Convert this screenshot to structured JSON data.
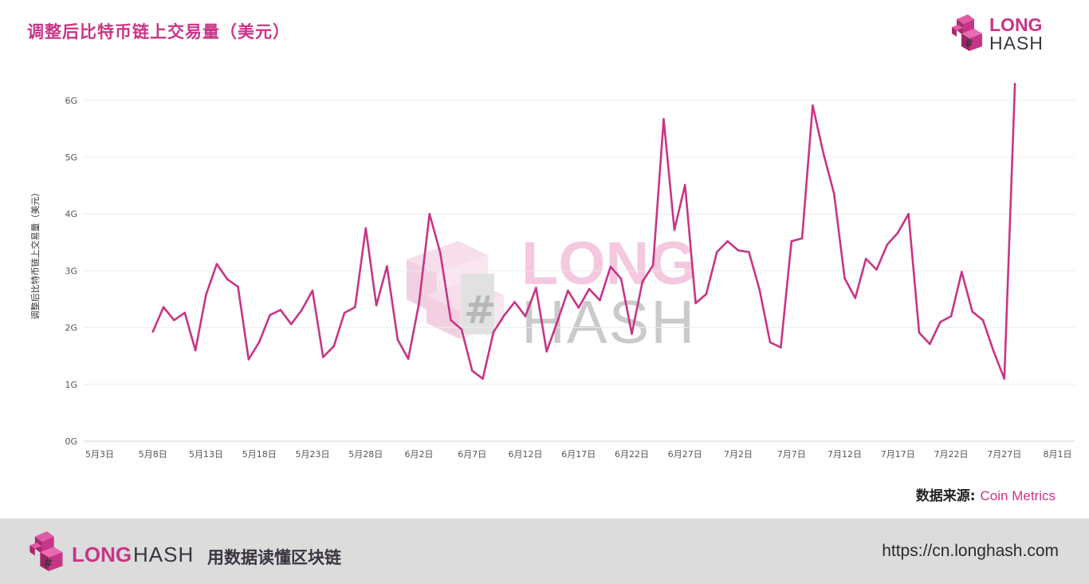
{
  "header": {
    "title": "调整后比特币链上交易量（美元）",
    "logo_word1": "LONG",
    "logo_word2": "HASH"
  },
  "watermark": {
    "word1": "LONG",
    "word2": "HASH"
  },
  "source": {
    "label": "数据来源:",
    "name": "Coin Metrics"
  },
  "footer": {
    "logo_word1": "LONG",
    "logo_word2": "HASH",
    "slogan": "用数据读懂区块链",
    "url": "https://cn.longhash.com"
  },
  "colors": {
    "accent": "#c83586",
    "grid": "#ececec",
    "axis_text": "#555555",
    "footer_bg": "#dcdcdc",
    "watermark": "#f0cfe0"
  },
  "chart_data": {
    "type": "line",
    "title": "调整后比特币链上交易量（美元）",
    "xlabel": "",
    "ylabel": "调整后比特币链上交易量（美元）",
    "x_tick_labels": [
      "5月3日",
      "5月8日",
      "5月13日",
      "5月18日",
      "5月23日",
      "5月28日",
      "6月2日",
      "6月7日",
      "6月12日",
      "6月17日",
      "6月22日",
      "6月27日",
      "7月2日",
      "7月7日",
      "7月12日",
      "7月17日",
      "7月22日",
      "7月27日",
      "8月1日"
    ],
    "y_tick_labels": [
      "0G",
      "1G",
      "2G",
      "3G",
      "4G",
      "5G",
      "6G"
    ],
    "ylim": [
      0,
      6.3
    ],
    "y_unit": "G",
    "grid": true,
    "legend": "none",
    "series": [
      {
        "x": [
          "5月8日",
          "5月9日",
          "5月10日",
          "5月11日",
          "5月12日",
          "5月13日",
          "5月14日",
          "5月15日",
          "5月16日",
          "5月17日",
          "5月18日",
          "5月19日",
          "5月20日",
          "5月21日",
          "5月22日",
          "5月23日",
          "5月24日",
          "5月25日",
          "5月26日",
          "5月27日",
          "5月28日",
          "5月29日",
          "5月30日",
          "5月31日",
          "6月1日",
          "6月2日",
          "6月3日",
          "6月4日",
          "6月5日",
          "6月6日",
          "6月7日",
          "6月8日",
          "6月9日",
          "6月10日",
          "6月11日",
          "6月12日",
          "6月13日",
          "6月14日",
          "6月15日",
          "6月16日",
          "6月17日",
          "6月18日",
          "6月19日",
          "6月20日",
          "6月21日",
          "6月22日",
          "6月23日",
          "6月24日",
          "6月25日",
          "6月26日",
          "6月27日",
          "6月28日",
          "6月29日",
          "6月30日",
          "7月1日",
          "7月2日",
          "7月3日",
          "7月4日",
          "7月5日",
          "7月6日",
          "7月7日",
          "7月8日",
          "7月9日",
          "7月10日",
          "7月11日",
          "7月12日",
          "7月13日",
          "7月14日",
          "7月15日",
          "7月16日",
          "7月17日",
          "7月18日",
          "7月19日",
          "7月20日",
          "7月21日",
          "7月22日",
          "7月23日",
          "7月24日",
          "7月25日",
          "7月26日",
          "7月27日",
          "7月28日",
          "7月29日",
          "7月30日"
        ],
        "values": [
          1.93,
          2.36,
          2.13,
          2.26,
          1.6,
          2.58,
          3.12,
          2.85,
          2.72,
          1.44,
          1.75,
          2.22,
          2.31,
          2.06,
          2.31,
          2.65,
          1.48,
          1.67,
          2.26,
          2.36,
          3.75,
          2.39,
          3.08,
          1.79,
          1.45,
          2.42,
          4.0,
          3.32,
          2.13,
          1.97,
          1.24,
          1.1,
          1.92,
          2.21,
          2.45,
          2.2,
          2.7,
          1.58,
          2.1,
          2.65,
          2.35,
          2.68,
          2.48,
          3.07,
          2.86,
          1.89,
          2.81,
          3.1,
          5.67,
          3.72,
          4.51,
          2.43,
          2.59,
          3.33,
          3.52,
          3.36,
          3.33,
          2.67,
          1.74,
          1.65,
          3.52,
          3.57,
          5.91,
          5.07,
          4.36,
          2.87,
          2.52,
          3.21,
          3.02,
          3.46,
          3.67,
          4.0,
          1.91,
          1.71,
          2.1,
          2.2,
          2.98,
          2.28,
          2.13,
          1.58,
          1.1,
          6.29,
          null,
          null
        ]
      }
    ]
  }
}
